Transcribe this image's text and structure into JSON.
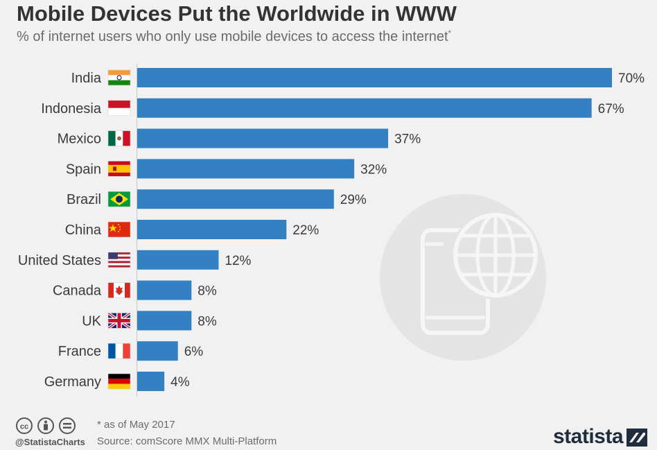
{
  "header": {
    "title": "Mobile Devices Put the Worldwide in WWW",
    "subtitle": "% of internet users who only use mobile devices to access the internet",
    "subtitle_mark": "*"
  },
  "chart_data": {
    "type": "bar",
    "orientation": "horizontal",
    "title": "Mobile Devices Put the Worldwide in WWW",
    "subtitle": "% of internet users who only use mobile devices to access the internet*",
    "categories": [
      "India",
      "Indonesia",
      "Mexico",
      "Spain",
      "Brazil",
      "China",
      "United States",
      "Canada",
      "UK",
      "France",
      "Germany"
    ],
    "flags": [
      "india",
      "indonesia",
      "mexico",
      "spain",
      "brazil",
      "china",
      "united-states",
      "canada",
      "uk",
      "france",
      "germany"
    ],
    "values": [
      70,
      67,
      37,
      32,
      29,
      22,
      12,
      8,
      8,
      6,
      4
    ],
    "value_labels": [
      "70%",
      "67%",
      "37%",
      "32%",
      "29%",
      "22%",
      "12%",
      "8%",
      "8%",
      "6%",
      "4%"
    ],
    "unit": "%",
    "xlim": [
      0,
      70
    ],
    "grid": false,
    "bar_color": "#3380c2"
  },
  "footer": {
    "note": "* as of May 2017",
    "source": "Source: comScore MMX Multi-Platform",
    "handle": "@StatistaCharts",
    "brand": "statista",
    "license_icons": [
      "cc-icon",
      "attribution-icon",
      "no-derivatives-icon"
    ]
  },
  "colors": {
    "background": "#f1f1f1",
    "bar": "#3380c2",
    "title": "#333333",
    "subtitle": "#6b6b6b",
    "watermark": "#e4e4e4"
  }
}
